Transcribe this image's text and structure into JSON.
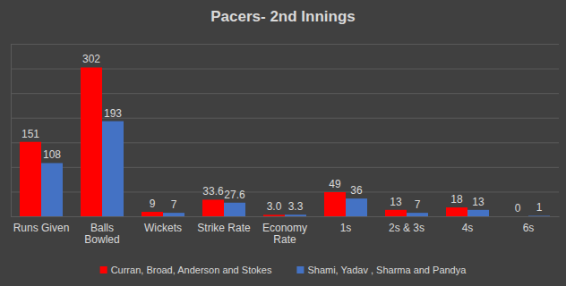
{
  "chart_data": {
    "type": "bar",
    "title": "Pacers- 2nd Innings",
    "categories": [
      "Runs Given",
      "Balls Bowled",
      "Wickets",
      "Strike Rate",
      "Economy Rate",
      "1s",
      "2s & 3s",
      "4s",
      "6s"
    ],
    "series": [
      {
        "name": "Curran, Broad, Anderson and Stokes",
        "color": "#ff0000",
        "values": [
          151,
          302,
          9,
          33.6,
          3.0,
          49,
          13,
          18,
          0
        ],
        "value_labels": [
          "151",
          "302",
          "9",
          "33.6",
          "3.0",
          "49",
          "13",
          "18",
          "0"
        ]
      },
      {
        "name": "Shami, Yadav , Sharma and Pandya",
        "color": "#4472c4",
        "values": [
          108,
          193,
          7,
          27.6,
          3.3,
          36,
          7,
          13,
          1
        ],
        "value_labels": [
          "108",
          "193",
          "7",
          "27.6",
          "3.3",
          "36",
          "7",
          "13",
          "1"
        ]
      }
    ],
    "ylim": [
      0,
      350
    ],
    "yticks": [
      0,
      50,
      100,
      150,
      200,
      250,
      300,
      350
    ],
    "grid": true,
    "data_labels": true,
    "tick_labels": "x",
    "legend": "bottom"
  }
}
